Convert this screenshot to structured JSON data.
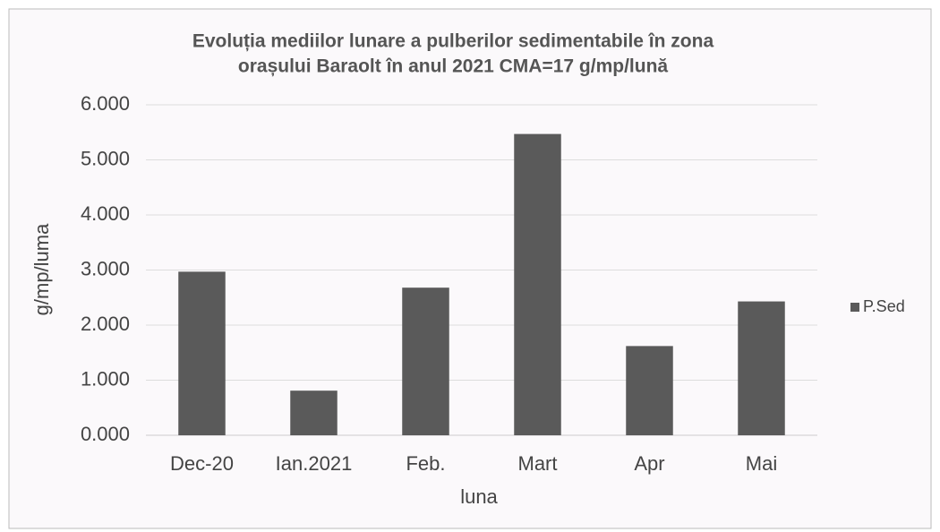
{
  "chart_data": {
    "type": "bar",
    "title": [
      "Evoluția mediilor lunare a pulberilor sedimentabile în zona",
      "orașului Baraolt în anul 2021 CMA=17 g/mp/lună"
    ],
    "x_label": "luna",
    "y_label": "g/mp/luma",
    "categories": [
      "Dec-20",
      "Ian.2021",
      "Feb.",
      "Mart",
      "Apr",
      "Mai"
    ],
    "series": [
      {
        "name": "P.Sed",
        "color": "#5a5a5a",
        "values": [
          2.97,
          0.81,
          2.68,
          5.47,
          1.62,
          2.43
        ]
      }
    ],
    "ylim": [
      0,
      6
    ],
    "yticks": [
      {
        "value": 0,
        "label": "0.000"
      },
      {
        "value": 1,
        "label": "1.000"
      },
      {
        "value": 2,
        "label": "2.000"
      },
      {
        "value": 3,
        "label": "3.000"
      },
      {
        "value": 4,
        "label": "4.000"
      },
      {
        "value": 5,
        "label": "5.000"
      },
      {
        "value": 6,
        "label": "6.000"
      }
    ],
    "grid": true,
    "legend": "right"
  }
}
